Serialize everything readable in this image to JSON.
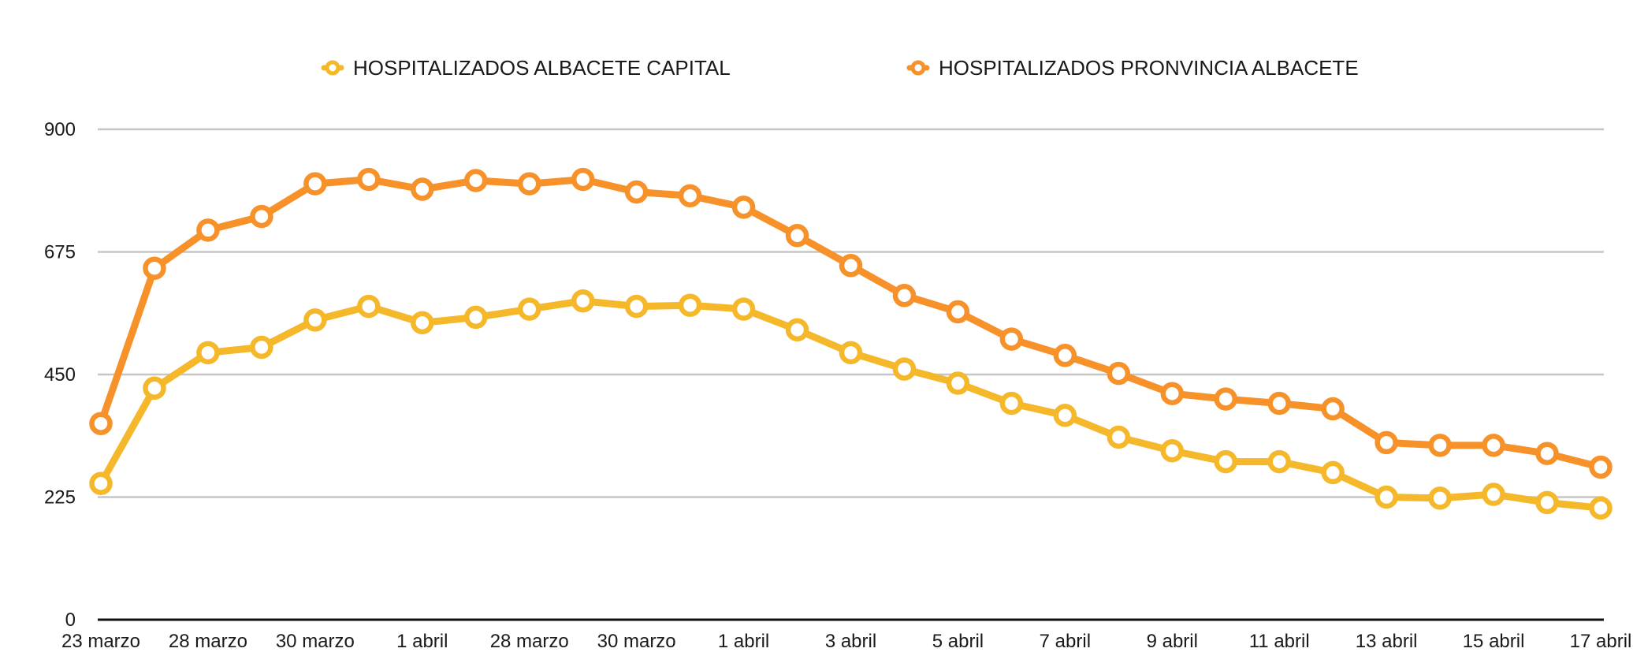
{
  "chart_data": {
    "type": "line",
    "title": "",
    "xlabel": "",
    "ylabel": "",
    "ylim": [
      0,
      900
    ],
    "yticks": [
      0,
      225,
      450,
      675,
      900
    ],
    "grid": true,
    "legend_position": "top-center",
    "categories": [
      "23 marzo",
      "",
      "28 marzo",
      "",
      "30 marzo",
      "",
      "1 abril",
      "",
      "28 marzo",
      "",
      "30 marzo",
      "",
      "1 abril",
      "",
      "3 abril",
      "",
      "5 abril",
      "",
      "7 abril",
      "",
      "9 abril",
      "",
      "11 abril",
      "",
      "13 abril",
      "",
      "15 abril",
      "",
      "17 abril"
    ],
    "xtick_labels": [
      "23 marzo",
      "28 marzo",
      "30 marzo",
      "1 abril",
      "28 marzo",
      "30 marzo",
      "1 abril",
      "3 abril",
      "5 abril",
      "7 abril",
      "9 abril",
      "11 abril",
      "13 abril",
      "15 abril",
      "17 abril"
    ],
    "series": [
      {
        "name": "HOSPITALIZADOS ALBACETE CAPITAL",
        "color": "#f5b82a",
        "values": [
          250,
          425,
          490,
          500,
          550,
          575,
          545,
          555,
          570,
          585,
          575,
          577,
          570,
          532,
          490,
          460,
          434,
          397,
          375,
          335,
          310,
          290,
          290,
          270,
          225,
          223,
          230,
          215,
          205
        ]
      },
      {
        "name": "HOSPITALIZADOS PRONVINCIA ALBACETE",
        "color": "#f7912a",
        "values": [
          360,
          645,
          715,
          740,
          800,
          808,
          790,
          806,
          800,
          808,
          785,
          778,
          757,
          705,
          650,
          595,
          565,
          515,
          485,
          452,
          415,
          405,
          397,
          387,
          325,
          320,
          320,
          305,
          280
        ]
      }
    ]
  }
}
